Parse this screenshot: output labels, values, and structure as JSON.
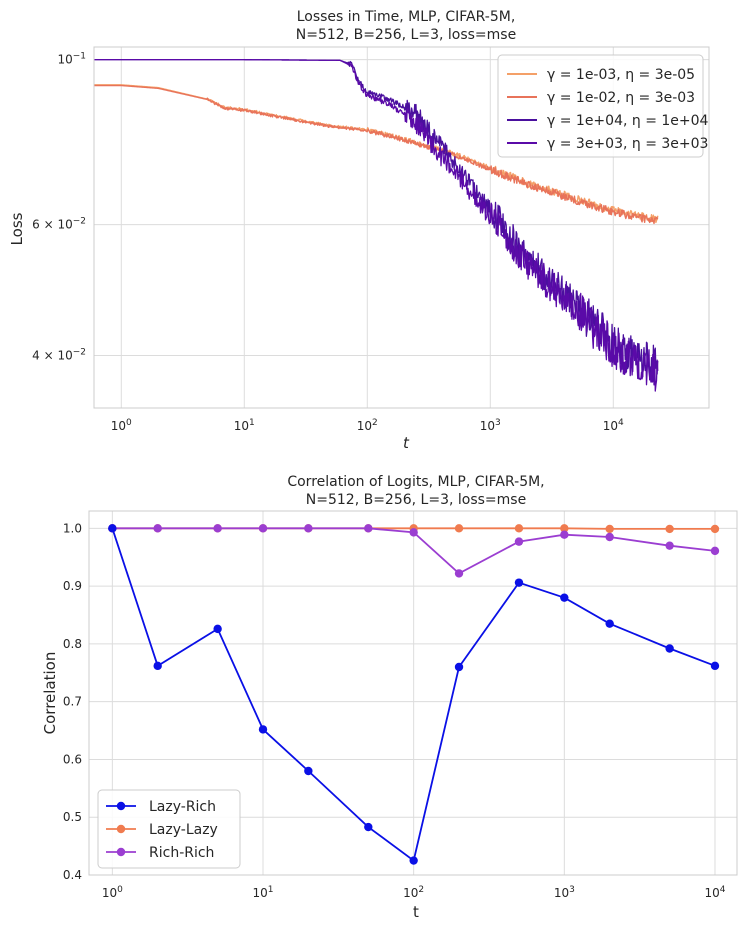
{
  "chart_data": [
    {
      "type": "line",
      "title_lines": [
        "Losses in Time, MLP, CIFAR-5M,",
        "N=512, B=256, L=3, loss=mse"
      ],
      "xlabel": "t",
      "ylabel": "Loss",
      "xscale": "log",
      "yscale": "log",
      "xlim": [
        0.6,
        60000
      ],
      "ylim": [
        0.034,
        0.104
      ],
      "xticks": [
        {
          "v": 1,
          "b": "10",
          "e": "0"
        },
        {
          "v": 10,
          "b": "10",
          "e": "1"
        },
        {
          "v": 100,
          "b": "10",
          "e": "2"
        },
        {
          "v": 1000,
          "b": "10",
          "e": "3"
        },
        {
          "v": 10000,
          "b": "10",
          "e": "4"
        }
      ],
      "yticks": [
        {
          "v": 0.1,
          "b": "10",
          "e": "−1"
        },
        {
          "v": 0.06,
          "m": "6 × 10",
          "e": "−2"
        },
        {
          "v": 0.04,
          "m": "4 × 10",
          "e": "−2"
        }
      ],
      "legend_position": "top-right",
      "series": [
        {
          "name": "γ = 1e-03, η = 3e-05",
          "gamma": "1e-03",
          "eta": "3e-05",
          "color": "#f4a068",
          "kind": "lazy",
          "points": [
            [
              0.6,
              0.0925
            ],
            [
              1,
              0.0925
            ],
            [
              2,
              0.0917
            ],
            [
              5,
              0.0885
            ],
            [
              7,
              0.0862
            ],
            [
              10,
              0.0857
            ],
            [
              20,
              0.0838
            ],
            [
              50,
              0.0815
            ],
            [
              100,
              0.0805
            ],
            [
              200,
              0.0782
            ],
            [
              500,
              0.0748
            ],
            [
              1000,
              0.0715
            ],
            [
              2000,
              0.0682
            ],
            [
              5000,
              0.065
            ],
            [
              10000,
              0.0627
            ],
            [
              23000,
              0.061
            ]
          ]
        },
        {
          "name": "γ = 1e-02, η = 3e-03",
          "gamma": "1e-02",
          "eta": "3e-03",
          "color": "#e8735a",
          "kind": "lazy",
          "points": [
            [
              0.6,
              0.0923
            ],
            [
              1,
              0.0923
            ],
            [
              2,
              0.0915
            ],
            [
              5,
              0.0884
            ],
            [
              7,
              0.086
            ],
            [
              10,
              0.0855
            ],
            [
              20,
              0.0836
            ],
            [
              50,
              0.0813
            ],
            [
              100,
              0.0803
            ],
            [
              200,
              0.078
            ],
            [
              500,
              0.0745
            ],
            [
              1000,
              0.0712
            ],
            [
              2000,
              0.068
            ],
            [
              5000,
              0.0647
            ],
            [
              10000,
              0.0624
            ],
            [
              23000,
              0.0606
            ]
          ]
        },
        {
          "name": "γ = 1e+04, η = 1e+04",
          "gamma": "1e+04",
          "eta": "1e+04",
          "color": "#4a0f9e",
          "kind": "rich",
          "points": [
            [
              0.6,
              0.1
            ],
            [
              10,
              0.1
            ],
            [
              60,
              0.0998
            ],
            [
              75,
              0.0985
            ],
            [
              85,
              0.0935
            ],
            [
              100,
              0.0905
            ],
            [
              150,
              0.0885
            ],
            [
              250,
              0.0845
            ],
            [
              400,
              0.0762
            ],
            [
              600,
              0.07
            ],
            [
              1000,
              0.0628
            ],
            [
              2000,
              0.054
            ],
            [
              5000,
              0.0468
            ],
            [
              10000,
              0.0415
            ],
            [
              23000,
              0.0385
            ]
          ]
        },
        {
          "name": "γ = 3e+03, η = 3e+03",
          "gamma": "3e+03",
          "eta": "3e+03",
          "color": "#5a0aa8",
          "kind": "rich",
          "points": [
            [
              0.6,
              0.1
            ],
            [
              10,
              0.1
            ],
            [
              60,
              0.0998
            ],
            [
              75,
              0.098
            ],
            [
              85,
              0.0925
            ],
            [
              100,
              0.0895
            ],
            [
              150,
              0.0872
            ],
            [
              250,
              0.082
            ],
            [
              400,
              0.074
            ],
            [
              600,
              0.0685
            ],
            [
              1000,
              0.0615
            ],
            [
              2000,
              0.0532
            ],
            [
              5000,
              0.0462
            ],
            [
              10000,
              0.041
            ],
            [
              23000,
              0.038
            ]
          ]
        }
      ]
    },
    {
      "type": "line",
      "title_lines": [
        "Correlation of Logits, MLP, CIFAR-5M,",
        "N=512, B=256, L=3, loss=mse"
      ],
      "xlabel": "t",
      "ylabel": "Correlation",
      "xscale": "log",
      "xlim": [
        0.7,
        14000
      ],
      "ylim": [
        0.4,
        1.03
      ],
      "xticks": [
        {
          "v": 1,
          "b": "10",
          "e": "0"
        },
        {
          "v": 10,
          "b": "10",
          "e": "1"
        },
        {
          "v": 100,
          "b": "10",
          "e": "2"
        },
        {
          "v": 1000,
          "b": "10",
          "e": "3"
        },
        {
          "v": 10000,
          "b": "10",
          "e": "4"
        }
      ],
      "yticks": [
        {
          "v": 0.4,
          "l": "0.4"
        },
        {
          "v": 0.5,
          "l": "0.5"
        },
        {
          "v": 0.6,
          "l": "0.6"
        },
        {
          "v": 0.7,
          "l": "0.7"
        },
        {
          "v": 0.8,
          "l": "0.8"
        },
        {
          "v": 0.9,
          "l": "0.9"
        },
        {
          "v": 1.0,
          "l": "1.0"
        }
      ],
      "legend_position": "bottom-left",
      "x": [
        1,
        2,
        5,
        10,
        20,
        50,
        100,
        200,
        500,
        1000,
        2000,
        5000,
        10000
      ],
      "series": [
        {
          "name": "Lazy-Rich",
          "color": "#0a10e6",
          "values": [
            1.0,
            0.762,
            0.826,
            0.652,
            0.58,
            0.483,
            0.425,
            0.76,
            0.906,
            0.88,
            0.835,
            0.792,
            0.762
          ]
        },
        {
          "name": "Lazy-Lazy",
          "color": "#f07b4f",
          "values": [
            1.0,
            1.0,
            1.0,
            1.0,
            1.0,
            1.0,
            1.0,
            1.0,
            1.0,
            1.0,
            0.999,
            0.999,
            0.999
          ]
        },
        {
          "name": "Rich-Rich",
          "color": "#9b3ed1",
          "values": [
            1.0,
            1.0,
            1.0,
            1.0,
            1.0,
            1.0,
            0.993,
            0.922,
            0.977,
            0.989,
            0.985,
            0.97,
            0.961
          ]
        }
      ]
    }
  ]
}
